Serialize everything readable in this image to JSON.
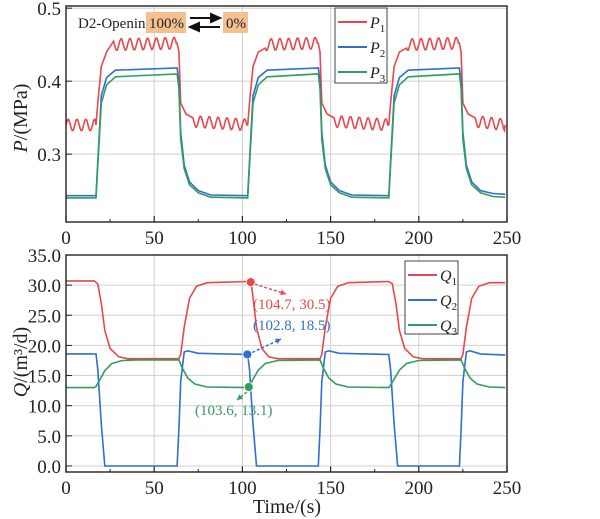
{
  "chart_data": [
    {
      "type": "line",
      "ylabel_italic": "P",
      "ylabel_rest": "/(MPa)",
      "xlim": [
        0,
        250
      ],
      "ylim": [
        0.207,
        0.503
      ],
      "xticks": [
        "0",
        "50",
        "100",
        "150",
        "200",
        "250"
      ],
      "yticks": [
        {
          "v": 0.3,
          "label": "0.3"
        },
        {
          "v": 0.4,
          "label": "0.4"
        },
        {
          "v": 0.5,
          "label": "0.5"
        }
      ],
      "grid": true,
      "legend_position": "top-center-right",
      "annotation": {
        "text": "D2-Opening",
        "from": "100%",
        "to": "0%",
        "highlight": "#f4c08f"
      },
      "series": [
        {
          "name": "P",
          "sub": "1",
          "color": "#e8484a",
          "oscillation": {
            "amplitude": 0.008,
            "period_s": 5
          },
          "points": [
            [
              0,
              0.34
            ],
            [
              17,
              0.34
            ],
            [
              18,
              0.37
            ],
            [
              20,
              0.42
            ],
            [
              23,
              0.44
            ],
            [
              27,
              0.45
            ],
            [
              63,
              0.452
            ],
            [
              64,
              0.44
            ],
            [
              65,
              0.37
            ],
            [
              68,
              0.355
            ],
            [
              72,
              0.345
            ],
            [
              103,
              0.34
            ],
            [
              104,
              0.37
            ],
            [
              106,
              0.42
            ],
            [
              109,
              0.44
            ],
            [
              113,
              0.45
            ],
            [
              143,
              0.452
            ],
            [
              144,
              0.44
            ],
            [
              145,
              0.37
            ],
            [
              148,
              0.355
            ],
            [
              152,
              0.345
            ],
            [
              183,
              0.34
            ],
            [
              184,
              0.37
            ],
            [
              186,
              0.42
            ],
            [
              189,
              0.44
            ],
            [
              193,
              0.45
            ],
            [
              223,
              0.452
            ],
            [
              224,
              0.44
            ],
            [
              225,
              0.37
            ],
            [
              228,
              0.355
            ],
            [
              232,
              0.345
            ],
            [
              249,
              0.34
            ]
          ]
        },
        {
          "name": "P",
          "sub": "2",
          "color": "#2f6fd0",
          "points": [
            [
              0,
              0.243
            ],
            [
              17,
              0.243
            ],
            [
              18,
              0.29
            ],
            [
              20,
              0.38
            ],
            [
              23,
              0.405
            ],
            [
              28,
              0.415
            ],
            [
              63,
              0.418
            ],
            [
              64,
              0.4
            ],
            [
              65,
              0.33
            ],
            [
              67,
              0.285
            ],
            [
              70,
              0.262
            ],
            [
              75,
              0.25
            ],
            [
              82,
              0.244
            ],
            [
              103,
              0.243
            ],
            [
              104,
              0.29
            ],
            [
              106,
              0.38
            ],
            [
              109,
              0.405
            ],
            [
              114,
              0.415
            ],
            [
              143,
              0.418
            ],
            [
              144,
              0.4
            ],
            [
              145,
              0.33
            ],
            [
              147,
              0.285
            ],
            [
              150,
              0.262
            ],
            [
              155,
              0.25
            ],
            [
              162,
              0.244
            ],
            [
              183,
              0.243
            ],
            [
              184,
              0.29
            ],
            [
              186,
              0.38
            ],
            [
              189,
              0.405
            ],
            [
              194,
              0.415
            ],
            [
              223,
              0.418
            ],
            [
              224,
              0.4
            ],
            [
              225,
              0.33
            ],
            [
              227,
              0.285
            ],
            [
              230,
              0.262
            ],
            [
              235,
              0.25
            ],
            [
              242,
              0.246
            ],
            [
              249,
              0.245
            ]
          ]
        },
        {
          "name": "P",
          "sub": "3",
          "color": "#2f9e5e",
          "points": [
            [
              0,
              0.24
            ],
            [
              17,
              0.24
            ],
            [
              18,
              0.285
            ],
            [
              20,
              0.37
            ],
            [
              23,
              0.395
            ],
            [
              28,
              0.406
            ],
            [
              63,
              0.41
            ],
            [
              64,
              0.39
            ],
            [
              65,
              0.32
            ],
            [
              67,
              0.28
            ],
            [
              70,
              0.258
            ],
            [
              75,
              0.247
            ],
            [
              82,
              0.241
            ],
            [
              103,
              0.24
            ],
            [
              104,
              0.285
            ],
            [
              106,
              0.37
            ],
            [
              109,
              0.395
            ],
            [
              114,
              0.406
            ],
            [
              143,
              0.41
            ],
            [
              144,
              0.39
            ],
            [
              145,
              0.32
            ],
            [
              147,
              0.28
            ],
            [
              150,
              0.258
            ],
            [
              155,
              0.247
            ],
            [
              162,
              0.241
            ],
            [
              183,
              0.24
            ],
            [
              184,
              0.285
            ],
            [
              186,
              0.37
            ],
            [
              189,
              0.395
            ],
            [
              194,
              0.406
            ],
            [
              223,
              0.41
            ],
            [
              224,
              0.39
            ],
            [
              225,
              0.32
            ],
            [
              227,
              0.28
            ],
            [
              230,
              0.258
            ],
            [
              235,
              0.247
            ],
            [
              242,
              0.242
            ],
            [
              249,
              0.241
            ]
          ]
        }
      ]
    },
    {
      "type": "line",
      "xlabel": "Time/(s)",
      "ylabel_italic": "Q",
      "ylabel_rest": "/(m³/d)",
      "xlim": [
        0,
        250
      ],
      "ylim": [
        -1,
        35
      ],
      "xticks": [
        "0",
        "50",
        "100",
        "150",
        "200",
        "250"
      ],
      "yticks": [
        {
          "v": 0,
          "label": "0.0"
        },
        {
          "v": 5,
          "label": "5.0"
        },
        {
          "v": 10,
          "label": "10.0"
        },
        {
          "v": 15,
          "label": "15.0"
        },
        {
          "v": 20,
          "label": "20.0"
        },
        {
          "v": 25,
          "label": "25.0"
        },
        {
          "v": 30,
          "label": "30.0"
        },
        {
          "v": 35,
          "label": "35.0"
        }
      ],
      "grid": true,
      "legend_position": "top-right",
      "series": [
        {
          "name": "Q",
          "sub": "1",
          "color": "#e8484a",
          "points": [
            [
              0,
              30.7
            ],
            [
              16,
              30.7
            ],
            [
              18,
              30.2
            ],
            [
              20,
              27
            ],
            [
              22,
              22.5
            ],
            [
              25,
              19.5
            ],
            [
              30,
              18.1
            ],
            [
              35,
              17.8
            ],
            [
              64,
              17.8
            ],
            [
              65,
              18.5
            ],
            [
              67,
              23
            ],
            [
              70,
              27.8
            ],
            [
              74,
              29.8
            ],
            [
              80,
              30.4
            ],
            [
              103,
              30.6
            ],
            [
              105,
              30.4
            ],
            [
              106,
              28
            ],
            [
              108,
              23
            ],
            [
              111,
              19.5
            ],
            [
              115,
              18.1
            ],
            [
              120,
              17.8
            ],
            [
              144,
              17.8
            ],
            [
              145,
              18.5
            ],
            [
              147,
              23
            ],
            [
              150,
              27.8
            ],
            [
              154,
              29.8
            ],
            [
              160,
              30.4
            ],
            [
              183,
              30.6
            ],
            [
              185,
              30.2
            ],
            [
              187,
              27
            ],
            [
              189,
              22.5
            ],
            [
              192,
              19.5
            ],
            [
              197,
              18.1
            ],
            [
              202,
              17.8
            ],
            [
              224,
              17.8
            ],
            [
              225,
              18.5
            ],
            [
              227,
              23
            ],
            [
              230,
              27.8
            ],
            [
              234,
              29.8
            ],
            [
              240,
              30.4
            ],
            [
              249,
              30.4
            ]
          ]
        },
        {
          "name": "Q",
          "sub": "2",
          "color": "#2f6fd0",
          "points": [
            [
              0,
              18.6
            ],
            [
              17,
              18.6
            ],
            [
              18,
              16
            ],
            [
              20,
              7
            ],
            [
              22,
              0
            ],
            [
              63,
              0
            ],
            [
              64,
              6
            ],
            [
              65,
              14
            ],
            [
              67,
              18.9
            ],
            [
              69,
              19.1
            ],
            [
              75,
              18.7
            ],
            [
              103,
              18.5
            ],
            [
              104,
              16
            ],
            [
              106,
              7
            ],
            [
              108,
              0
            ],
            [
              143,
              0
            ],
            [
              144,
              6
            ],
            [
              145,
              14
            ],
            [
              147,
              18.9
            ],
            [
              149,
              19.1
            ],
            [
              155,
              18.7
            ],
            [
              183,
              18.5
            ],
            [
              184,
              16
            ],
            [
              186,
              7
            ],
            [
              188,
              0
            ],
            [
              223,
              0
            ],
            [
              224,
              6
            ],
            [
              225,
              14
            ],
            [
              227,
              18.9
            ],
            [
              229,
              19.1
            ],
            [
              235,
              18.6
            ],
            [
              249,
              18.4
            ]
          ]
        },
        {
          "name": "Q",
          "sub": "3",
          "color": "#2f9e5e",
          "points": [
            [
              0,
              13.0
            ],
            [
              16,
              13.0
            ],
            [
              17,
              13.2
            ],
            [
              19,
              14.2
            ],
            [
              22,
              15.8
            ],
            [
              26,
              17
            ],
            [
              32,
              17.5
            ],
            [
              40,
              17.6
            ],
            [
              64,
              17.6
            ],
            [
              66,
              16.2
            ],
            [
              69,
              14.6
            ],
            [
              73,
              13.6
            ],
            [
              80,
              13.1
            ],
            [
              103,
              13.0
            ],
            [
              104,
              13.2
            ],
            [
              106,
              14.4
            ],
            [
              109,
              15.9
            ],
            [
              113,
              17
            ],
            [
              120,
              17.5
            ],
            [
              144,
              17.6
            ],
            [
              146,
              16.2
            ],
            [
              149,
              14.6
            ],
            [
              153,
              13.6
            ],
            [
              160,
              13.1
            ],
            [
              183,
              13.0
            ],
            [
              184,
              13.4
            ],
            [
              186,
              14.4
            ],
            [
              189,
              15.9
            ],
            [
              193,
              17
            ],
            [
              200,
              17.5
            ],
            [
              224,
              17.6
            ],
            [
              226,
              16.2
            ],
            [
              229,
              14.6
            ],
            [
              233,
              13.6
            ],
            [
              240,
              13.1
            ],
            [
              249,
              13.0
            ]
          ]
        }
      ],
      "markers": [
        {
          "x": 104.7,
          "y": 30.5,
          "label": "(104.7, 30.5)",
          "color": "#e8484a"
        },
        {
          "x": 102.8,
          "y": 18.5,
          "label": "(102.8, 18.5)",
          "color": "#2f6fd0"
        },
        {
          "x": 103.6,
          "y": 13.1,
          "label": "(103.6, 13.1)",
          "color": "#2f9e5e"
        }
      ]
    }
  ]
}
